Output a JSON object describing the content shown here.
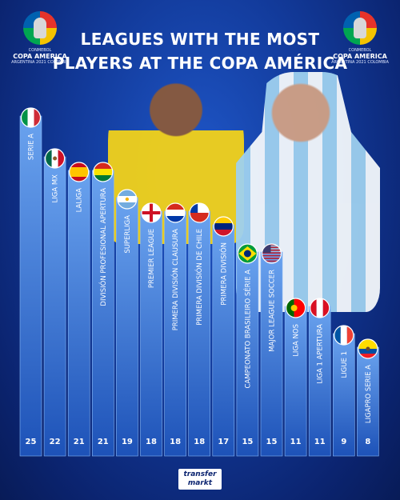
{
  "header": {
    "title_line1": "LEAGUES WITH THE MOST",
    "title_line2": "PLAYERS AT THE COPA AMÉRICA"
  },
  "logo": {
    "small": "CONMEBOL",
    "name": "COPA AMERICA",
    "sub": "ARGENTINA 2021 COLOMBIA"
  },
  "brand": {
    "name": "transfer\nmarkt"
  },
  "chart_data": {
    "type": "bar",
    "orientation": "vertical",
    "categories": [
      "SERIE A",
      "LIGA MX",
      "LALIGA",
      "DIVISIÓN PROFESIONAL APERTURA",
      "SUPERLIGA",
      "PREMIER LEAGUE",
      "PRIMERA DIVISIÓN CLAUSURA",
      "PRIMERA DIVISIÓN DE CHILE",
      "PRIMERA DIVISIÓN",
      "CAMPEONATO BRASILEIRO SÉRIE A",
      "MAJOR LEAGUE SOCCER",
      "LIGA NOS",
      "LIGA 1 APERTURA",
      "LIGUE 1",
      "LIGAPRO SERIE A"
    ],
    "values": [
      25,
      22,
      21,
      21,
      19,
      18,
      18,
      18,
      17,
      15,
      15,
      11,
      11,
      9,
      8
    ],
    "flags": [
      "italy",
      "mexico",
      "spain",
      "bolivia",
      "argentina",
      "england",
      "paraguay",
      "chile",
      "venezuela",
      "brazil",
      "usa",
      "portugal",
      "peru",
      "france",
      "ecuador"
    ],
    "ylim": [
      0,
      25
    ]
  }
}
